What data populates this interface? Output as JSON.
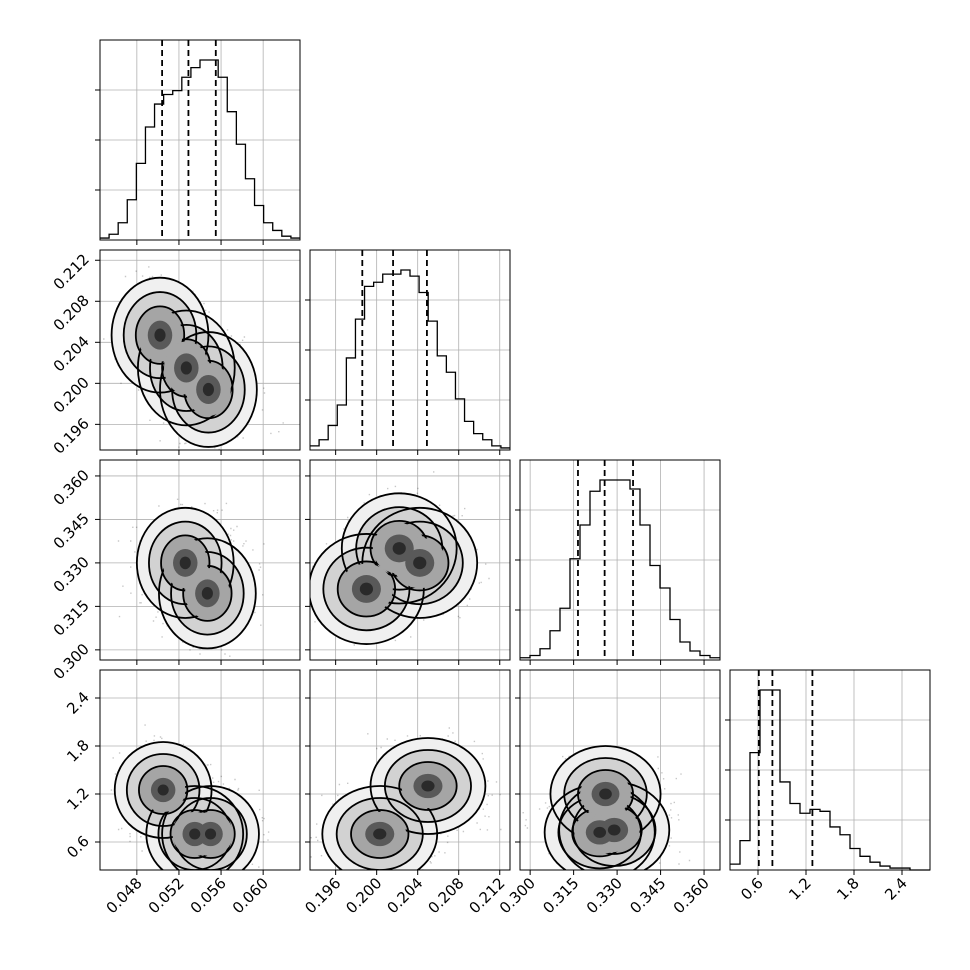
{
  "chart_data": {
    "type": "corner",
    "grid": true,
    "parameters": [
      {
        "range": [
          0.0445,
          0.0635
        ],
        "ticks": [
          "0.048",
          "0.052",
          "0.056",
          "0.060"
        ],
        "tick_values": [
          0.048,
          0.052,
          0.056,
          0.06
        ],
        "mean": 0.053,
        "std": 0.0023,
        "quantiles": [
          0.0504,
          0.0529,
          0.0555
        ]
      },
      {
        "range": [
          0.1935,
          0.213
        ],
        "ticks": [
          "0.196",
          "0.200",
          "0.204",
          "0.208",
          "0.212"
        ],
        "tick_values": [
          0.196,
          0.2,
          0.204,
          0.208,
          0.212
        ],
        "mean": 0.2018,
        "std": 0.0028,
        "quantiles": [
          0.1986,
          0.2016,
          0.2049
        ]
      },
      {
        "range": [
          0.2965,
          0.3655
        ],
        "ticks": [
          "0.300",
          "0.315",
          "0.330",
          "0.345",
          "0.360"
        ],
        "tick_values": [
          0.3,
          0.315,
          0.33,
          0.345,
          0.36
        ],
        "mean": 0.3262,
        "std": 0.0095,
        "quantiles": [
          0.3165,
          0.3257,
          0.3355
        ]
      },
      {
        "range": [
          0.25,
          2.75
        ],
        "ticks": [
          "0.6",
          "1.2",
          "1.8",
          "2.4"
        ],
        "tick_values": [
          0.6,
          1.2,
          1.8,
          2.4
        ],
        "mean": 0.95,
        "std": 0.3,
        "quantiles": [
          0.61,
          0.78,
          1.28
        ]
      }
    ],
    "histograms": [
      [
        1,
        3,
        9,
        21,
        40,
        59,
        71,
        76,
        78,
        85,
        90,
        94,
        94,
        85,
        67,
        50,
        32,
        18,
        9,
        5,
        2,
        1
      ],
      [
        2,
        5,
        12,
        22,
        45,
        64,
        80,
        82,
        86,
        86,
        88,
        85,
        77,
        63,
        46,
        38,
        25,
        14,
        8,
        5,
        2,
        1
      ],
      [
        1,
        2,
        5,
        13,
        23,
        45,
        60,
        75,
        80,
        80,
        80,
        76,
        60,
        42,
        32,
        18,
        8,
        4,
        2,
        1
      ],
      [
        3,
        15,
        60,
        92,
        92,
        45,
        34,
        29,
        31,
        30,
        22,
        18,
        11,
        7,
        4,
        2,
        1,
        1,
        0,
        0
      ]
    ],
    "histogram_bins": [
      [
        0.0445,
        0.0635
      ],
      [
        0.1935,
        0.213
      ],
      [
        0.2965,
        0.3655
      ],
      [
        0.25,
        2.75
      ]
    ],
    "pairs": [
      {
        "x": 0,
        "y": 1,
        "modes": [
          [
            0.0502,
            0.2047
          ],
          [
            0.0527,
            0.2015
          ],
          [
            0.0548,
            0.1994
          ]
        ],
        "contours": [
          [
            [
              0.051,
              0.2025
            ],
            [
              0.054,
              0.2003
            ],
            [
              0.052,
              0.204
            ]
          ],
          [
            [
              0.047,
              0.208
            ],
            [
              0.0575,
              0.197
            ],
            [
              0.0545,
              0.201
            ],
            [
              0.05,
              0.2055
            ]
          ]
        ]
      },
      {
        "x": 0,
        "y": 2,
        "modes": [
          [
            0.0526,
            0.33
          ],
          [
            0.0547,
            0.3195
          ]
        ],
        "contours": [
          [
            [
              0.0525,
              0.33
            ],
            [
              0.0548,
              0.32
            ]
          ],
          [
            [
              0.05,
              0.332
            ],
            [
              0.055,
              0.319
            ]
          ]
        ]
      },
      {
        "x": 1,
        "y": 2,
        "modes": [
          [
            0.199,
            0.321
          ],
          [
            0.2022,
            0.335
          ],
          [
            0.2042,
            0.33
          ]
        ],
        "contours": [
          [
            [
              0.199,
              0.321
            ],
            [
              0.202,
              0.3345
            ]
          ],
          [
            [
              0.1995,
              0.322
            ],
            [
              0.203,
              0.33
            ]
          ]
        ]
      },
      {
        "x": 0,
        "y": 3,
        "modes": [
          [
            0.0535,
            0.7
          ],
          [
            0.0505,
            1.25
          ],
          [
            0.055,
            0.7
          ]
        ],
        "contours": [
          [
            [
              0.0535,
              0.7
            ],
            [
              0.0505,
              1.2
            ]
          ],
          [
            [
              0.054,
              0.7
            ],
            [
              0.05,
              1.3
            ]
          ]
        ]
      },
      {
        "x": 1,
        "y": 3,
        "modes": [
          [
            0.2003,
            0.7
          ],
          [
            0.205,
            1.3
          ]
        ],
        "contours": [
          [
            [
              0.2003,
              0.7
            ]
          ],
          [
            [
              0.201,
              0.7
            ],
            [
              0.205,
              1.25
            ]
          ]
        ]
      },
      {
        "x": 2,
        "y": 3,
        "modes": [
          [
            0.324,
            0.72
          ],
          [
            0.329,
            0.75
          ],
          [
            0.326,
            1.2
          ]
        ],
        "contours": [
          [
            [
              0.326,
              0.72
            ],
            [
              0.328,
              1.2
            ]
          ],
          [
            [
              0.324,
              0.75
            ],
            [
              0.329,
              1.3
            ]
          ]
        ]
      }
    ]
  }
}
